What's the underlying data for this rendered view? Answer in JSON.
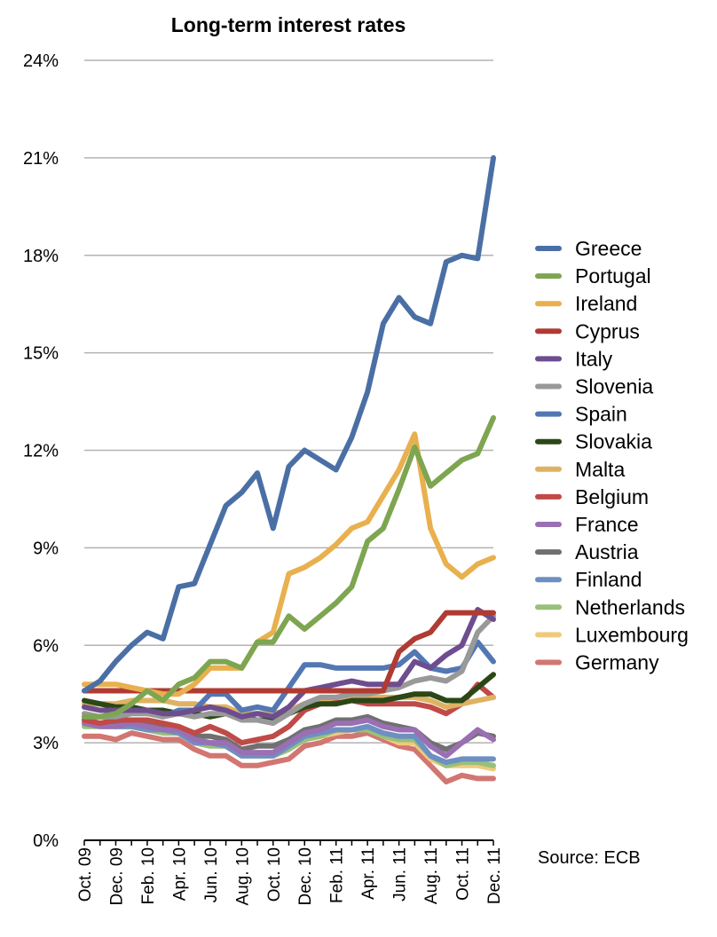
{
  "chart_data": {
    "type": "line",
    "title": "Long-term interest rates",
    "source": "Source: ECB",
    "ylim": [
      0,
      24
    ],
    "ytick_values": [
      0,
      3,
      6,
      9,
      12,
      15,
      18,
      21,
      24
    ],
    "ytick_labels": [
      "0%",
      "3%",
      "6%",
      "9%",
      "12%",
      "15%",
      "18%",
      "21%",
      "24%"
    ],
    "grid": true,
    "legend_position": "right",
    "x": [
      "Oct. 09",
      "Nov. 09",
      "Dec. 09",
      "Jan. 10",
      "Feb. 10",
      "Mar. 10",
      "Apr. 10",
      "May 10",
      "Jun. 10",
      "Jul. 10",
      "Aug. 10",
      "Sep. 10",
      "Oct. 10",
      "Nov. 10",
      "Dec. 10",
      "Jan. 11",
      "Feb. 11",
      "Mar. 11",
      "Apr. 11",
      "May 11",
      "Jun. 11",
      "Jul. 11",
      "Aug. 11",
      "Sep. 11",
      "Oct. 11",
      "Nov. 11",
      "Dec. 11"
    ],
    "xtick_labels": [
      "Oct. 09",
      "",
      "Dec. 09",
      "",
      "Feb. 10",
      "",
      "Apr. 10",
      "",
      "Jun. 10",
      "",
      "Aug. 10",
      "",
      "Oct. 10",
      "",
      "Dec. 10",
      "",
      "Feb. 11",
      "",
      "Apr. 11",
      "",
      "Jun. 11",
      "",
      "Aug. 11",
      "",
      "Oct. 11",
      "",
      "Dec. 11"
    ],
    "series": [
      {
        "name": "Greece",
        "color": "#4a6fa5",
        "values": [
          4.6,
          4.9,
          5.5,
          6.0,
          6.4,
          6.2,
          7.8,
          7.9,
          9.1,
          10.3,
          10.7,
          11.3,
          9.6,
          11.5,
          12.0,
          11.7,
          11.4,
          12.4,
          13.8,
          15.9,
          16.7,
          16.1,
          15.9,
          17.8,
          18.0,
          17.9,
          21.0
        ]
      },
      {
        "name": "Portugal",
        "color": "#7ea550",
        "values": [
          3.8,
          3.8,
          3.9,
          4.2,
          4.6,
          4.3,
          4.8,
          5.0,
          5.5,
          5.5,
          5.3,
          6.1,
          6.1,
          6.9,
          6.5,
          6.9,
          7.3,
          7.8,
          9.2,
          9.6,
          10.8,
          12.1,
          10.9,
          11.3,
          11.7,
          11.9,
          13.0
        ]
      },
      {
        "name": "Ireland",
        "color": "#e8b04e",
        "values": [
          4.8,
          4.8,
          4.8,
          4.7,
          4.6,
          4.5,
          4.5,
          4.8,
          5.3,
          5.3,
          5.3,
          6.1,
          6.4,
          8.2,
          8.4,
          8.7,
          9.1,
          9.6,
          9.8,
          10.6,
          11.4,
          12.5,
          9.6,
          8.5,
          8.1,
          8.5,
          8.7
        ]
      },
      {
        "name": "Cyprus",
        "color": "#b03b33",
        "values": [
          4.6,
          4.6,
          4.6,
          4.6,
          4.6,
          4.6,
          4.6,
          4.6,
          4.6,
          4.6,
          4.6,
          4.6,
          4.6,
          4.6,
          4.6,
          4.6,
          4.6,
          4.6,
          4.6,
          4.6,
          5.8,
          6.2,
          6.4,
          7.0,
          7.0,
          7.0,
          7.0
        ]
      },
      {
        "name": "Italy",
        "color": "#6e4d8f",
        "values": [
          4.1,
          4.0,
          4.0,
          4.0,
          4.0,
          3.9,
          3.9,
          4.0,
          4.1,
          4.0,
          3.8,
          3.9,
          3.8,
          4.1,
          4.6,
          4.7,
          4.8,
          4.9,
          4.8,
          4.8,
          4.8,
          5.5,
          5.3,
          5.7,
          6.0,
          7.1,
          6.8
        ]
      },
      {
        "name": "Slovenia",
        "color": "#999999",
        "values": [
          3.9,
          3.8,
          3.8,
          3.9,
          3.9,
          3.8,
          3.9,
          3.8,
          3.9,
          3.9,
          3.7,
          3.7,
          3.6,
          3.9,
          4.2,
          4.4,
          4.4,
          4.5,
          4.5,
          4.6,
          4.7,
          4.9,
          5.0,
          4.9,
          5.2,
          6.4,
          6.9
        ]
      },
      {
        "name": "Spain",
        "color": "#5277b3",
        "values": [
          3.8,
          3.8,
          3.8,
          3.9,
          4.0,
          3.8,
          4.0,
          4.0,
          4.5,
          4.5,
          4.0,
          4.1,
          4.0,
          4.7,
          5.4,
          5.4,
          5.3,
          5.3,
          5.3,
          5.3,
          5.4,
          5.8,
          5.3,
          5.2,
          5.3,
          6.1,
          5.5
        ]
      },
      {
        "name": "Slovakia",
        "color": "#2b4716",
        "values": [
          4.3,
          4.2,
          4.1,
          4.1,
          4.0,
          4.0,
          3.9,
          3.9,
          3.8,
          3.9,
          3.8,
          3.7,
          3.7,
          3.9,
          4.1,
          4.2,
          4.2,
          4.3,
          4.3,
          4.3,
          4.4,
          4.5,
          4.5,
          4.3,
          4.3,
          4.7,
          5.1
        ]
      },
      {
        "name": "Malta",
        "color": "#dfb263",
        "values": [
          4.2,
          4.2,
          4.2,
          4.3,
          4.3,
          4.3,
          4.2,
          4.2,
          4.1,
          4.1,
          3.9,
          3.9,
          3.9,
          4.0,
          4.2,
          4.3,
          4.4,
          4.4,
          4.4,
          4.4,
          4.4,
          4.4,
          4.3,
          4.1,
          4.2,
          4.3,
          4.4
        ]
      },
      {
        "name": "Belgium",
        "color": "#bf4a47",
        "values": [
          3.7,
          3.6,
          3.7,
          3.7,
          3.7,
          3.6,
          3.5,
          3.3,
          3.5,
          3.3,
          3.0,
          3.1,
          3.2,
          3.5,
          4.0,
          4.2,
          4.3,
          4.3,
          4.2,
          4.2,
          4.2,
          4.2,
          4.1,
          3.9,
          4.2,
          4.8,
          4.4
        ]
      },
      {
        "name": "France",
        "color": "#9a6fb3",
        "values": [
          3.6,
          3.5,
          3.5,
          3.6,
          3.5,
          3.4,
          3.4,
          3.1,
          3.0,
          3.0,
          2.7,
          2.7,
          2.7,
          3.0,
          3.3,
          3.4,
          3.6,
          3.6,
          3.7,
          3.5,
          3.4,
          3.4,
          2.9,
          2.6,
          3.0,
          3.4,
          3.1
        ]
      },
      {
        "name": "Austria",
        "color": "#707070",
        "values": [
          3.7,
          3.6,
          3.6,
          3.7,
          3.6,
          3.5,
          3.4,
          3.2,
          3.2,
          3.1,
          2.8,
          2.9,
          2.9,
          3.1,
          3.4,
          3.5,
          3.7,
          3.7,
          3.8,
          3.6,
          3.5,
          3.4,
          3.0,
          2.8,
          3.0,
          3.3,
          3.2
        ]
      },
      {
        "name": "Finland",
        "color": "#6e8fc2",
        "values": [
          3.6,
          3.6,
          3.5,
          3.5,
          3.4,
          3.4,
          3.3,
          3.0,
          3.0,
          2.9,
          2.6,
          2.6,
          2.6,
          2.9,
          3.2,
          3.3,
          3.4,
          3.4,
          3.5,
          3.3,
          3.2,
          3.2,
          2.6,
          2.4,
          2.5,
          2.5,
          2.5
        ]
      },
      {
        "name": "Netherlands",
        "color": "#98c07a",
        "values": [
          3.5,
          3.5,
          3.5,
          3.5,
          3.4,
          3.3,
          3.3,
          3.0,
          2.9,
          2.9,
          2.6,
          2.6,
          2.6,
          2.8,
          3.1,
          3.2,
          3.4,
          3.4,
          3.4,
          3.2,
          3.1,
          3.1,
          2.6,
          2.3,
          2.4,
          2.4,
          2.3
        ]
      },
      {
        "name": "Luxembourg",
        "color": "#f0ca7c",
        "values": [
          3.6,
          3.6,
          3.5,
          3.5,
          3.4,
          3.3,
          3.3,
          3.0,
          3.0,
          2.9,
          2.6,
          2.6,
          2.6,
          2.8,
          3.1,
          3.2,
          3.3,
          3.4,
          3.4,
          3.2,
          3.0,
          3.0,
          2.5,
          2.3,
          2.3,
          2.3,
          2.2
        ]
      },
      {
        "name": "Germany",
        "color": "#d27671",
        "values": [
          3.2,
          3.2,
          3.1,
          3.3,
          3.2,
          3.1,
          3.1,
          2.8,
          2.6,
          2.6,
          2.3,
          2.3,
          2.4,
          2.5,
          2.9,
          3.0,
          3.2,
          3.2,
          3.3,
          3.1,
          2.9,
          2.8,
          2.3,
          1.8,
          2.0,
          1.9,
          1.9
        ]
      }
    ]
  }
}
